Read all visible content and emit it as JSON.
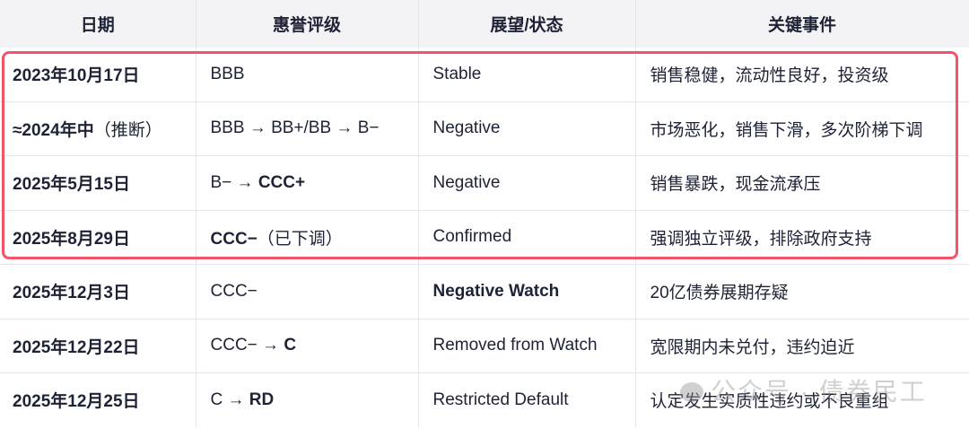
{
  "headers": [
    "日期",
    "惠誉评级",
    "展望/状态",
    "关键事件"
  ],
  "rows": [
    [
      [
        {
          "t": "2023年10月17日",
          "b": true
        }
      ],
      [
        {
          "t": "BBB"
        }
      ],
      [
        {
          "t": "Stable"
        }
      ],
      [
        {
          "t": "销售稳健，流动性良好，投资级"
        }
      ]
    ],
    [
      [
        {
          "t": "≈2024年中",
          "b": true
        },
        {
          "t": "（推断）"
        }
      ],
      [
        {
          "t": "BBB → BB+/BB → B−"
        }
      ],
      [
        {
          "t": "Negative"
        }
      ],
      [
        {
          "t": "市场恶化，销售下滑，多次阶梯下调"
        }
      ]
    ],
    [
      [
        {
          "t": "2025年5月15日",
          "b": true
        }
      ],
      [
        {
          "t": "B− → "
        },
        {
          "t": "CCC+",
          "b": true
        }
      ],
      [
        {
          "t": "Negative"
        }
      ],
      [
        {
          "t": "销售暴跌，现金流承压"
        }
      ]
    ],
    [
      [
        {
          "t": "2025年8月29日",
          "b": true
        }
      ],
      [
        {
          "t": "CCC−",
          "b": true
        },
        {
          "t": "（已下调）"
        }
      ],
      [
        {
          "t": "Confirmed"
        }
      ],
      [
        {
          "t": "强调独立评级，排除政府支持"
        }
      ]
    ],
    [
      [
        {
          "t": "2025年12月3日",
          "b": true
        }
      ],
      [
        {
          "t": "CCC−"
        }
      ],
      [
        {
          "t": "Negative Watch",
          "b": true
        }
      ],
      [
        {
          "t": "20亿债券展期存疑"
        }
      ]
    ],
    [
      [
        {
          "t": "2025年12月22日",
          "b": true
        }
      ],
      [
        {
          "t": "CCC− → "
        },
        {
          "t": "C",
          "b": true
        }
      ],
      [
        {
          "t": "Removed from Watch"
        }
      ],
      [
        {
          "t": "宽限期内未兑付，违约迫近"
        }
      ]
    ],
    [
      [
        {
          "t": "2025年12月25日",
          "b": true
        }
      ],
      [
        {
          "t": "C → "
        },
        {
          "t": "RD",
          "b": true
        }
      ],
      [
        {
          "t": "Restricted Default"
        }
      ],
      [
        {
          "t": "认定发生实质性违约或不良重组"
        }
      ]
    ]
  ],
  "highlight_color": "#f2556a",
  "watermark": "公众号 · 债券民工"
}
